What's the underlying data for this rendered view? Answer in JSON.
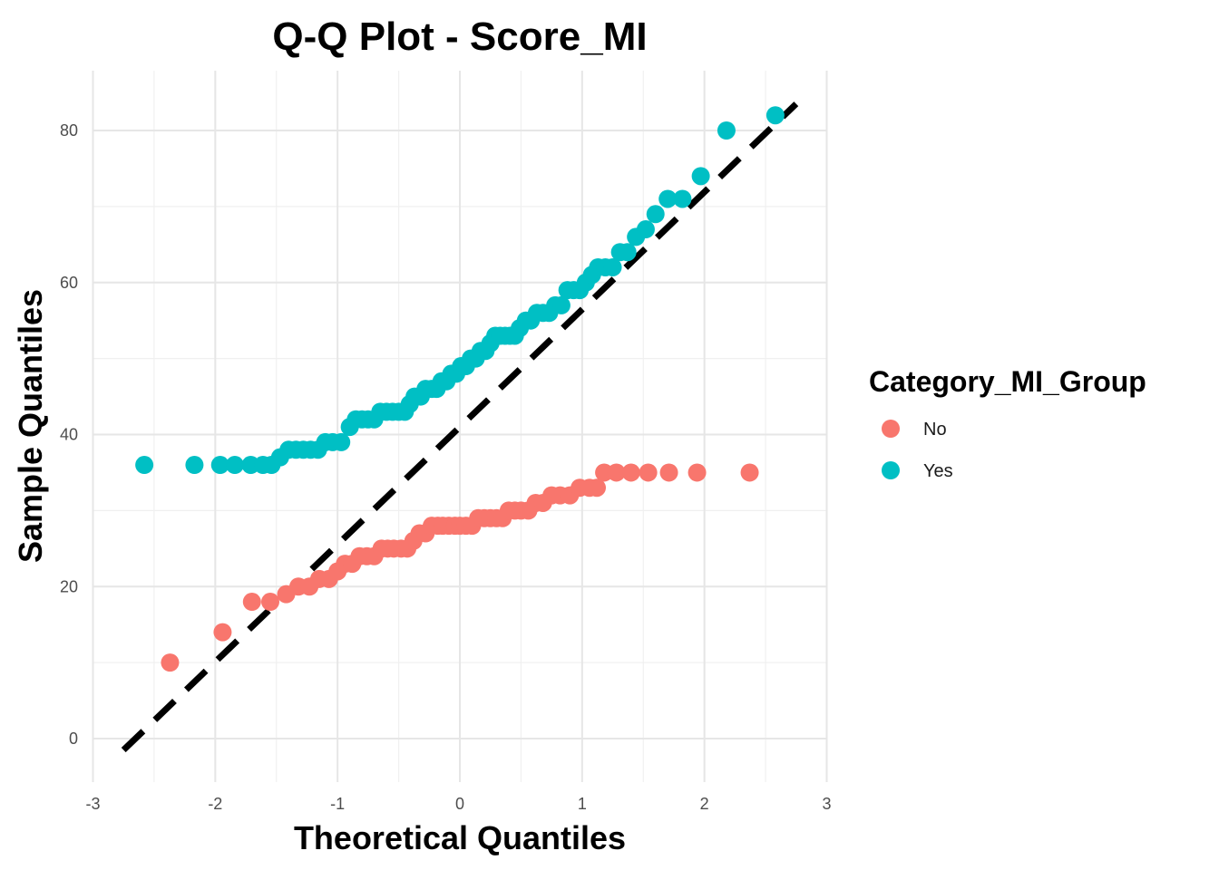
{
  "chart_data": {
    "type": "scatter",
    "title": "Q-Q Plot -  Score_MI",
    "xlabel": "Theoretical Quantiles",
    "ylabel": "Sample Quantiles",
    "xlim": [
      -3,
      3
    ],
    "ylim": [
      -5,
      88
    ],
    "x_ticks": [
      -3,
      -2,
      -1,
      0,
      1,
      2,
      3
    ],
    "y_ticks": [
      0,
      20,
      40,
      60,
      80
    ],
    "x_tick_labels": [
      "-3",
      "-2",
      "-1",
      "0",
      "1",
      "2",
      "3"
    ],
    "y_tick_labels": [
      "0",
      "20",
      "40",
      "60",
      "80"
    ],
    "grid": true,
    "legend": {
      "title": "Category_MI_Group",
      "placement": "right"
    },
    "reference_line": {
      "style": "dashed",
      "color": "#000000",
      "x": [
        -2.75,
        2.75
      ],
      "y": [
        -1.5,
        83.5
      ]
    },
    "series": [
      {
        "name": "No",
        "color": "#F8766D",
        "points": [
          [
            -2.37,
            10
          ],
          [
            -1.94,
            14
          ],
          [
            -1.7,
            18
          ],
          [
            -1.55,
            18
          ],
          [
            -1.42,
            19
          ],
          [
            -1.32,
            20
          ],
          [
            -1.23,
            20
          ],
          [
            -1.15,
            21
          ],
          [
            -1.07,
            21
          ],
          [
            -1.0,
            22
          ],
          [
            -0.94,
            23
          ],
          [
            -0.88,
            23
          ],
          [
            -0.82,
            24
          ],
          [
            -0.76,
            24
          ],
          [
            -0.7,
            24
          ],
          [
            -0.64,
            25
          ],
          [
            -0.59,
            25
          ],
          [
            -0.54,
            25
          ],
          [
            -0.48,
            25
          ],
          [
            -0.43,
            25
          ],
          [
            -0.38,
            26
          ],
          [
            -0.33,
            27
          ],
          [
            -0.28,
            27
          ],
          [
            -0.23,
            28
          ],
          [
            -0.18,
            28
          ],
          [
            -0.14,
            28
          ],
          [
            -0.09,
            28
          ],
          [
            -0.04,
            28
          ],
          [
            0.0,
            28
          ],
          [
            0.05,
            28
          ],
          [
            0.1,
            28
          ],
          [
            0.15,
            29
          ],
          [
            0.2,
            29
          ],
          [
            0.25,
            29
          ],
          [
            0.3,
            29
          ],
          [
            0.35,
            29
          ],
          [
            0.4,
            30
          ],
          [
            0.45,
            30
          ],
          [
            0.5,
            30
          ],
          [
            0.56,
            30
          ],
          [
            0.62,
            31
          ],
          [
            0.68,
            31
          ],
          [
            0.75,
            32
          ],
          [
            0.82,
            32
          ],
          [
            0.9,
            32
          ],
          [
            0.98,
            33
          ],
          [
            1.06,
            33
          ],
          [
            1.12,
            33
          ],
          [
            1.18,
            35
          ],
          [
            1.28,
            35
          ],
          [
            1.4,
            35
          ],
          [
            1.54,
            35
          ],
          [
            1.71,
            35
          ],
          [
            1.94,
            35
          ],
          [
            2.37,
            35
          ]
        ]
      },
      {
        "name": "Yes",
        "color": "#00BFC4",
        "points": [
          [
            -2.58,
            36
          ],
          [
            -2.17,
            36
          ],
          [
            -1.96,
            36
          ],
          [
            -1.84,
            36
          ],
          [
            -1.71,
            36
          ],
          [
            -1.61,
            36
          ],
          [
            -1.54,
            36
          ],
          [
            -1.47,
            37
          ],
          [
            -1.4,
            38
          ],
          [
            -1.34,
            38
          ],
          [
            -1.28,
            38
          ],
          [
            -1.22,
            38
          ],
          [
            -1.16,
            38
          ],
          [
            -1.1,
            39
          ],
          [
            -1.04,
            39
          ],
          [
            -0.97,
            39
          ],
          [
            -0.9,
            41
          ],
          [
            -0.85,
            42
          ],
          [
            -0.8,
            42
          ],
          [
            -0.75,
            42
          ],
          [
            -0.7,
            42
          ],
          [
            -0.65,
            43
          ],
          [
            -0.6,
            43
          ],
          [
            -0.55,
            43
          ],
          [
            -0.5,
            43
          ],
          [
            -0.45,
            43
          ],
          [
            -0.41,
            44
          ],
          [
            -0.37,
            45
          ],
          [
            -0.32,
            45
          ],
          [
            -0.28,
            46
          ],
          [
            -0.23,
            46
          ],
          [
            -0.19,
            46
          ],
          [
            -0.15,
            47
          ],
          [
            -0.11,
            47
          ],
          [
            -0.07,
            48
          ],
          [
            -0.03,
            48
          ],
          [
            0.01,
            49
          ],
          [
            0.05,
            49
          ],
          [
            0.09,
            50
          ],
          [
            0.13,
            50
          ],
          [
            0.17,
            51
          ],
          [
            0.21,
            51
          ],
          [
            0.25,
            52
          ],
          [
            0.29,
            53
          ],
          [
            0.33,
            53
          ],
          [
            0.37,
            53
          ],
          [
            0.41,
            53
          ],
          [
            0.45,
            53
          ],
          [
            0.49,
            54
          ],
          [
            0.54,
            55
          ],
          [
            0.58,
            55
          ],
          [
            0.63,
            56
          ],
          [
            0.68,
            56
          ],
          [
            0.73,
            56
          ],
          [
            0.78,
            57
          ],
          [
            0.83,
            57
          ],
          [
            0.88,
            59
          ],
          [
            0.93,
            59
          ],
          [
            0.98,
            59
          ],
          [
            1.03,
            60
          ],
          [
            1.08,
            61
          ],
          [
            1.13,
            62
          ],
          [
            1.19,
            62
          ],
          [
            1.25,
            62
          ],
          [
            1.31,
            64
          ],
          [
            1.37,
            64
          ],
          [
            1.44,
            66
          ],
          [
            1.52,
            67
          ],
          [
            1.6,
            69
          ],
          [
            1.7,
            71
          ],
          [
            1.82,
            71
          ],
          [
            1.97,
            74
          ],
          [
            2.18,
            80
          ],
          [
            2.58,
            82
          ]
        ]
      }
    ]
  }
}
